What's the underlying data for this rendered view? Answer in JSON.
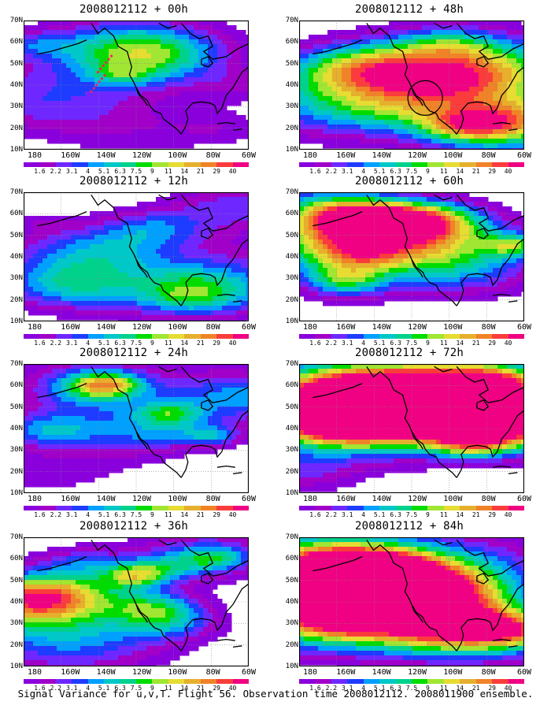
{
  "panels": [
    {
      "title": "2008012112 + 00h",
      "id": "p00",
      "intensity": 0.15,
      "track": true,
      "circle": false
    },
    {
      "title": "2008012112 + 48h",
      "id": "p48",
      "intensity": 0.45,
      "track": false,
      "circle": true
    },
    {
      "title": "2008012112 + 12h",
      "id": "p12",
      "intensity": 0.2,
      "track": false,
      "circle": false
    },
    {
      "title": "2008012112 + 60h",
      "id": "p60",
      "intensity": 0.55,
      "track": false,
      "circle": false
    },
    {
      "title": "2008012112 + 24h",
      "id": "p24",
      "intensity": 0.3,
      "track": false,
      "circle": false
    },
    {
      "title": "2008012112 + 72h",
      "id": "p72",
      "intensity": 0.7,
      "track": false,
      "circle": false
    },
    {
      "title": "2008012112 + 36h",
      "id": "p36",
      "intensity": 0.4,
      "track": false,
      "circle": false
    },
    {
      "title": "2008012112 + 84h",
      "id": "p84",
      "intensity": 0.8,
      "track": false,
      "circle": false
    }
  ],
  "lat_labels": [
    "70N",
    "60N",
    "50N",
    "40N",
    "30N",
    "20N",
    "10N"
  ],
  "lon_labels": [
    "180",
    "160W",
    "140W",
    "120W",
    "100W",
    "80W",
    "60W"
  ],
  "colorbar": {
    "labels": [
      "1.6",
      "2.2",
      "3.1",
      "4",
      "5.1",
      "6.3",
      "7.5",
      "9",
      "11",
      "14",
      "21",
      "29",
      "40"
    ],
    "colors": [
      "#8a00dc",
      "#a000c8",
      "#6e28ff",
      "#1e3cff",
      "#00a0ff",
      "#00c8c8",
      "#00d28c",
      "#00dc00",
      "#a0e632",
      "#e6dc32",
      "#e6af2d",
      "#f08228",
      "#fa3c3c",
      "#f00082"
    ]
  },
  "caption": "Signal Variance for u,v,T. Flight 56. Observation time 2008012112. 2008011900 ensemble."
}
